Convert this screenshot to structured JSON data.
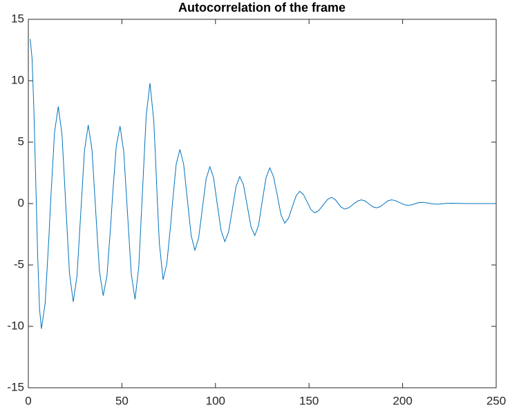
{
  "chart_data": {
    "type": "line",
    "title": "Autocorrelation of the frame",
    "x": [
      1,
      2,
      3,
      4,
      5,
      6,
      7,
      9,
      11,
      12,
      14,
      16,
      18,
      20,
      22,
      24,
      26,
      28,
      30,
      32,
      34,
      36,
      38,
      40,
      42,
      44,
      45,
      47,
      49,
      51,
      53,
      55,
      57,
      59,
      61,
      63,
      65,
      67,
      68,
      69,
      70,
      72,
      74,
      76,
      77,
      79,
      81,
      83,
      85,
      87,
      89,
      91,
      93,
      95,
      97,
      99,
      101,
      103,
      105,
      107,
      109,
      111,
      113,
      115,
      117,
      119,
      121,
      123,
      125,
      127,
      129,
      131,
      133,
      135,
      137,
      139,
      141,
      143,
      145,
      147,
      149,
      151,
      153,
      155,
      157,
      158,
      160,
      162,
      164,
      165,
      166,
      167,
      169,
      171,
      173,
      174,
      176,
      178,
      180,
      182,
      184,
      186,
      188,
      190,
      192,
      194,
      196,
      198,
      199,
      201,
      203,
      205,
      206,
      207,
      208,
      210,
      212,
      214,
      216,
      218,
      220,
      222,
      224,
      226,
      234,
      242,
      250
    ],
    "values": [
      13.4,
      11.8,
      7.5,
      1.6,
      -4.3,
      -8.6,
      -10.2,
      -8.1,
      -2.7,
      0.4,
      5.8,
      7.9,
      5.6,
      -0.1,
      -5.7,
      -8.0,
      -5.9,
      -0.8,
      4.3,
      6.4,
      4.4,
      -0.6,
      -5.5,
      -7.5,
      -5.9,
      -1.8,
      0.6,
      4.7,
      6.3,
      4.2,
      -0.8,
      -5.7,
      -7.8,
      -5.2,
      1.0,
      7.2,
      9.8,
      6.8,
      3.6,
      0.0,
      -3.2,
      -6.2,
      -4.9,
      -1.8,
      0.0,
      3.2,
      4.4,
      3.2,
      0.3,
      -2.6,
      -3.8,
      -2.8,
      -0.4,
      2.0,
      3.0,
      2.1,
      -0.1,
      -2.2,
      -3.1,
      -2.3,
      -0.5,
      1.4,
      2.2,
      1.5,
      -0.2,
      -1.9,
      -2.6,
      -1.8,
      0.2,
      2.1,
      2.9,
      2.2,
      0.7,
      -0.9,
      -1.6,
      -1.2,
      -0.3,
      0.6,
      1.0,
      0.74,
      0.13,
      -0.49,
      -0.75,
      -0.6,
      -0.23,
      -0.02,
      0.35,
      0.5,
      0.32,
      0.13,
      -0.08,
      -0.27,
      -0.45,
      -0.36,
      -0.14,
      -0.01,
      0.21,
      0.3,
      0.21,
      -0.03,
      -0.26,
      -0.35,
      -0.26,
      -0.03,
      0.21,
      0.3,
      0.25,
      0.11,
      0.04,
      -0.1,
      -0.15,
      -0.1,
      -0.05,
      0,
      0.05,
      0.1,
      0.08,
      0.03,
      -0.03,
      -0.05,
      -0.04,
      -0.01,
      0.02,
      0.03,
      0,
      0,
      0
    ],
    "color": "#0072bd",
    "xlim": [
      0,
      250
    ],
    "xticks": [
      0,
      50,
      100,
      150,
      200,
      250
    ],
    "ylim": [
      -15,
      15
    ],
    "yticks": [
      -15,
      -10,
      -5,
      0,
      5,
      10,
      15
    ]
  }
}
